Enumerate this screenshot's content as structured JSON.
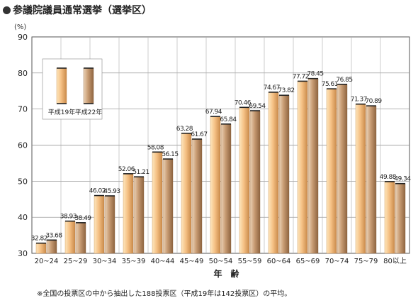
{
  "page": {
    "title": "参議院議員通常選挙（選挙区）",
    "unit": "(%)",
    "footnote": "※全国の投票区の中から抽出した188投票区（平成19年は142投票区）の平均。"
  },
  "chart_data": {
    "type": "bar",
    "title": "",
    "xlabel": "年　齢",
    "ylabel": "(%)",
    "ylim": [
      30,
      90
    ],
    "yticks": [
      30,
      40,
      50,
      60,
      70,
      80,
      90
    ],
    "grid": true,
    "legend_position": "top-left",
    "categories": [
      "20~24",
      "25~29",
      "30~34",
      "35~39",
      "40~44",
      "45~49",
      "50~54",
      "55~59",
      "60~64",
      "65~69",
      "70~74",
      "75~79",
      "80以上"
    ],
    "series": [
      {
        "name": "平成19年",
        "values": [
          32.82,
          38.93,
          46.02,
          52.06,
          58.08,
          63.28,
          67.94,
          70.46,
          74.67,
          77.72,
          75.61,
          71.37,
          49.88
        ],
        "labels": [
          "32.82",
          "38.93",
          "46.02",
          "52.06",
          "58.08",
          "63.28",
          "67.94",
          "70.46",
          "74.67",
          "77.72",
          "75.61",
          "71.37",
          "49.88"
        ],
        "color_light": "#fde6bd",
        "color_mid": "#f5c084",
        "color_dark": "#c98a4a"
      },
      {
        "name": "平成22年",
        "values": [
          33.68,
          38.49,
          45.93,
          51.21,
          56.15,
          61.67,
          65.84,
          69.54,
          73.82,
          78.45,
          76.85,
          70.89,
          49.34
        ],
        "labels": [
          "33.68",
          "38.49",
          "45.93",
          "51.21",
          "56.15",
          "61.67",
          "65.84",
          "69.54",
          "73.82",
          "78.45",
          "76.85",
          "70.89",
          "49.34"
        ],
        "color_light": "#ecd3b8",
        "color_mid": "#c79b72",
        "color_dark": "#8e6440"
      }
    ]
  }
}
